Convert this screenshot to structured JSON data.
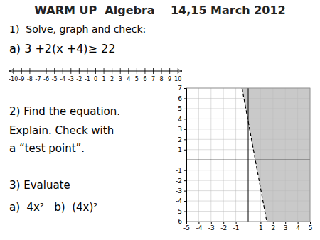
{
  "chart_data": [
    {
      "type": "number_line",
      "title": "WARM UP  Algebra    14,15 March 2012",
      "annotations": [
        "1)  Solve, graph and check:",
        "a) 3 +2(x +4)≥ 22",
        "2) Find the equation.",
        "Explain. Check with",
        "a “test point”.",
        "3) Evaluate",
        "a)  4x²   b)  (4x)²"
      ],
      "xlim": [
        -10.5,
        10.5
      ],
      "xticks": [
        -10,
        -9,
        -8,
        -7,
        -6,
        -5,
        -4,
        -3,
        -2,
        -1,
        0,
        1,
        2,
        3,
        4,
        5,
        6,
        7,
        8,
        9,
        10
      ]
    },
    {
      "type": "inequality",
      "color": "#C0C0C0",
      "grid": true,
      "xlim": [
        -5,
        5
      ],
      "ylim": [
        -6,
        7
      ],
      "xticks": [
        -5,
        -4,
        -3,
        -2,
        -1,
        1,
        2,
        3,
        4,
        5
      ],
      "yticks": [
        -6,
        -5,
        -4,
        -3,
        -2,
        -1,
        1,
        2,
        3,
        4,
        5,
        6,
        7
      ],
      "series": [
        {
          "x": [
            -0.5,
            1.5
          ],
          "values": [
            7,
            -6
          ],
          "line_style": "dashed"
        }
      ]
    }
  ]
}
